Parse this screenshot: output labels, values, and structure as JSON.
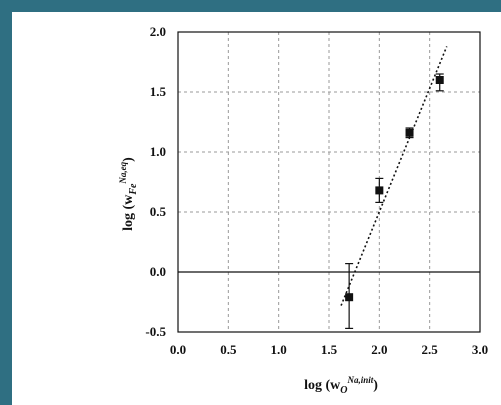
{
  "colors": {
    "border": "#2f6f82",
    "background": "#ffffff",
    "ink": "#111111",
    "grid": "#9a9a9a"
  },
  "chart_data": {
    "type": "scatter",
    "xlim": [
      0.0,
      3.0
    ],
    "ylim": [
      -0.5,
      2.0
    ],
    "x_ticks": [
      "0.0",
      "0.5",
      "1.0",
      "1.5",
      "2.0",
      "2.5",
      "3.0"
    ],
    "y_ticks": [
      "-0.5",
      "0.0",
      "0.5",
      "1.0",
      "1.5",
      "2.0"
    ],
    "x_tick_values": [
      0.0,
      0.5,
      1.0,
      1.5,
      2.0,
      2.5,
      3.0
    ],
    "y_tick_values": [
      -0.5,
      0.0,
      0.5,
      1.0,
      1.5,
      2.0
    ],
    "grid": true,
    "xlabel": {
      "base": "log (w",
      "sub": "O",
      "sup": "Na,init",
      "end": ")"
    },
    "ylabel": {
      "base": "log (w",
      "sub": "Fe",
      "sup": "Na,eq",
      "end": ")"
    },
    "points": [
      {
        "x": 1.7,
        "y": -0.21,
        "err_low": 0.26,
        "err_high": 0.28
      },
      {
        "x": 2.0,
        "y": 0.68,
        "err_low": 0.1,
        "err_high": 0.1
      },
      {
        "x": 2.3,
        "y": 1.16,
        "err_low": 0.04,
        "err_high": 0.04
      },
      {
        "x": 2.6,
        "y": 1.6,
        "err_low": 0.09,
        "err_high": 0.05
      }
    ],
    "trendline": {
      "style": "dotted",
      "from": [
        1.62,
        -0.28
      ],
      "to": [
        2.67,
        1.88
      ]
    },
    "zero_line": {
      "y": 0.0
    }
  }
}
